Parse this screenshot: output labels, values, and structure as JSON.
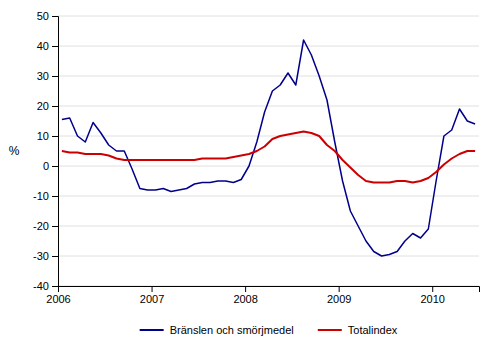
{
  "chart_data": {
    "type": "line",
    "title": "",
    "ylabel": "%",
    "x": [
      2006.041667,
      2006.125,
      2006.208333,
      2006.291667,
      2006.375,
      2006.458333,
      2006.541667,
      2006.625,
      2006.708333,
      2006.791667,
      2006.875,
      2006.958333,
      2007.041667,
      2007.125,
      2007.208333,
      2007.291667,
      2007.375,
      2007.458333,
      2007.541667,
      2007.625,
      2007.708333,
      2007.791667,
      2007.875,
      2007.958333,
      2008.041667,
      2008.125,
      2008.208333,
      2008.291667,
      2008.375,
      2008.458333,
      2008.541667,
      2008.625,
      2008.708333,
      2008.791667,
      2008.875,
      2008.958333,
      2009.041667,
      2009.125,
      2009.208333,
      2009.291667,
      2009.375,
      2009.458333,
      2009.541667,
      2009.625,
      2009.708333,
      2009.791667,
      2009.875,
      2009.958333,
      2010.041667,
      2010.125,
      2010.208333,
      2010.291667,
      2010.375,
      2010.458333
    ],
    "series": [
      {
        "name": "Bränslen och smörjmedel",
        "color": "#00008B",
        "values": [
          15.5,
          16.0,
          10.0,
          8.0,
          14.5,
          11.0,
          7.0,
          5.0,
          5.0,
          -1.0,
          -7.5,
          -8.0,
          -8.0,
          -7.5,
          -8.5,
          -8.0,
          -7.5,
          -6.0,
          -5.5,
          -5.5,
          -5.0,
          -5.0,
          -5.5,
          -4.5,
          0.0,
          8.0,
          18.0,
          25.0,
          27.0,
          31.0,
          27.0,
          42.0,
          37.0,
          30.0,
          22.0,
          8.0,
          -5.0,
          -15.0,
          -20.0,
          -25.0,
          -28.5,
          -30.0,
          -29.5,
          -28.5,
          -25.0,
          -22.5,
          -24.0,
          -21.0,
          -5.0,
          10.0,
          12.0,
          19.0,
          15.0,
          14.0
        ]
      },
      {
        "name": "Totalindex",
        "color": "#CC0000",
        "values": [
          5.0,
          4.5,
          4.5,
          4.0,
          4.0,
          4.0,
          3.5,
          2.5,
          2.0,
          2.0,
          2.0,
          2.0,
          2.0,
          2.0,
          2.0,
          2.0,
          2.0,
          2.0,
          2.5,
          2.5,
          2.5,
          2.5,
          3.0,
          3.5,
          4.0,
          5.0,
          6.5,
          9.0,
          10.0,
          10.5,
          11.0,
          11.5,
          11.0,
          10.0,
          7.0,
          5.0,
          2.0,
          -0.5,
          -3.0,
          -5.0,
          -5.5,
          -5.5,
          -5.5,
          -5.0,
          -5.0,
          -5.5,
          -5.0,
          -4.0,
          -2.0,
          0.5,
          2.5,
          4.0,
          5.0,
          5.0
        ]
      }
    ],
    "xlim": [
      2006.0,
      2010.5
    ],
    "xticks": [
      2006,
      2007,
      2008,
      2009,
      2010
    ],
    "ylim": [
      -40,
      50
    ],
    "yticks": [
      -40,
      -30,
      -20,
      -10,
      0,
      10,
      20,
      30,
      40,
      50
    ],
    "grid": true
  }
}
